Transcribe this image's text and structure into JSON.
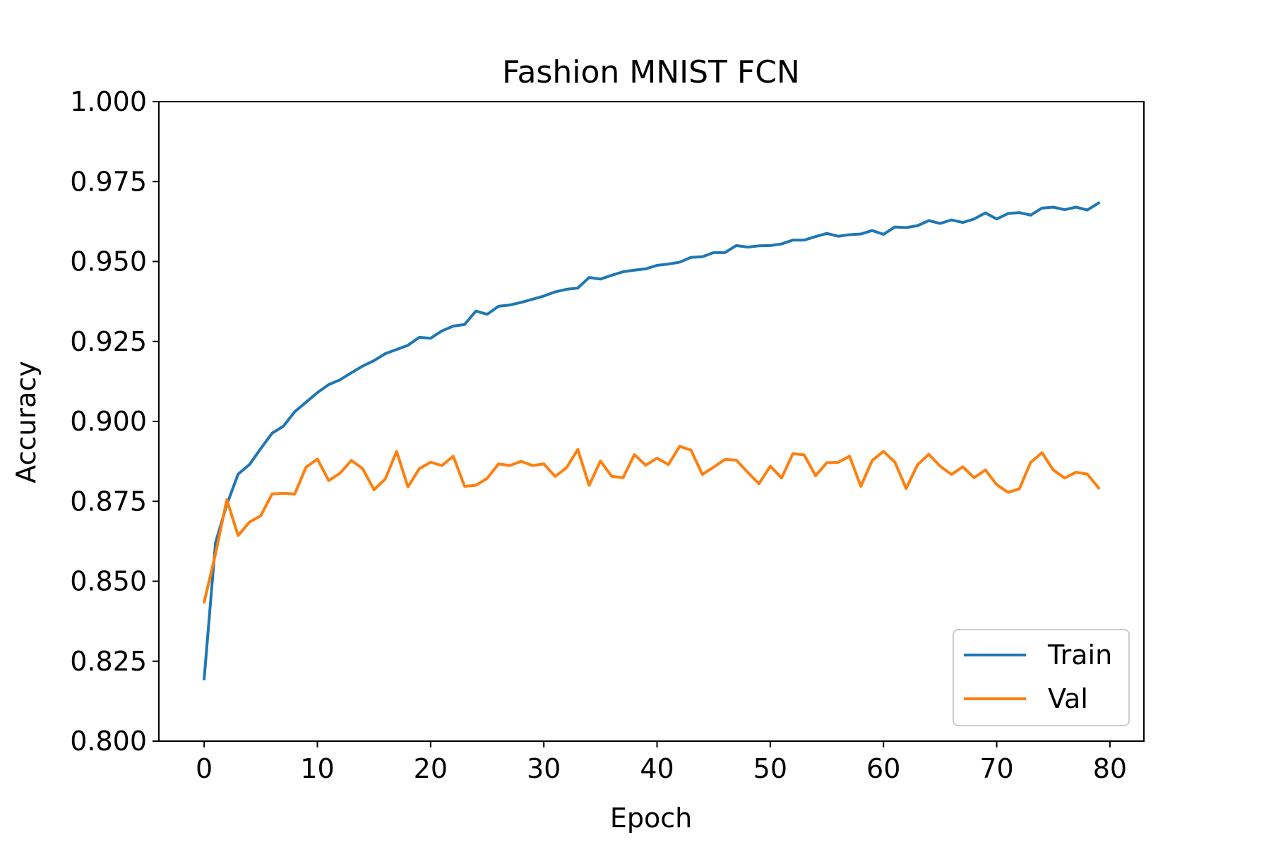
{
  "chart_data": {
    "type": "line",
    "title": "Fashion MNIST FCN",
    "xlabel": "Epoch",
    "ylabel": "Accuracy",
    "xlim": [
      -4,
      83
    ],
    "ylim": [
      0.8,
      1.0
    ],
    "xticks": [
      0,
      10,
      20,
      30,
      40,
      50,
      60,
      70,
      80
    ],
    "yticks": [
      0.8,
      0.825,
      0.85,
      0.875,
      0.9,
      0.925,
      0.95,
      0.975,
      1.0
    ],
    "xtick_labels": [
      "0",
      "10",
      "20",
      "30",
      "40",
      "50",
      "60",
      "70",
      "80"
    ],
    "ytick_labels": [
      "0.800",
      "0.825",
      "0.850",
      "0.875",
      "0.900",
      "0.925",
      "0.950",
      "0.975",
      "1.000"
    ],
    "grid": false,
    "legend": {
      "position": "lower-right",
      "entries": [
        "Train",
        "Val"
      ]
    },
    "x": [
      0,
      1,
      2,
      3,
      4,
      5,
      6,
      7,
      8,
      9,
      10,
      11,
      12,
      13,
      14,
      15,
      16,
      17,
      18,
      19,
      20,
      21,
      22,
      23,
      24,
      25,
      26,
      27,
      28,
      29,
      30,
      31,
      32,
      33,
      34,
      35,
      36,
      37,
      38,
      39,
      40,
      41,
      42,
      43,
      44,
      45,
      46,
      47,
      48,
      49,
      50,
      51,
      52,
      53,
      54,
      55,
      56,
      57,
      58,
      59,
      60,
      61,
      62,
      63,
      64,
      65,
      66,
      67,
      68,
      69,
      70,
      71,
      72,
      73,
      74,
      75,
      76,
      77,
      78,
      79
    ],
    "series": [
      {
        "name": "Train",
        "color": "#1f77b4",
        "values": [
          0.8195,
          0.862,
          0.874,
          0.8835,
          0.8865,
          0.8915,
          0.8963,
          0.8985,
          0.903,
          0.906,
          0.909,
          0.9115,
          0.913,
          0.9152,
          0.9173,
          0.919,
          0.9212,
          0.9225,
          0.9238,
          0.9263,
          0.926,
          0.9283,
          0.9298,
          0.9303,
          0.9345,
          0.9335,
          0.936,
          0.9364,
          0.9372,
          0.9382,
          0.9392,
          0.9405,
          0.9413,
          0.9417,
          0.945,
          0.9445,
          0.9457,
          0.9468,
          0.9473,
          0.9477,
          0.9488,
          0.9492,
          0.9498,
          0.9513,
          0.9515,
          0.9528,
          0.9528,
          0.955,
          0.9545,
          0.9549,
          0.955,
          0.9555,
          0.9567,
          0.9567,
          0.9578,
          0.9588,
          0.9579,
          0.9584,
          0.9586,
          0.9597,
          0.9585,
          0.9608,
          0.9606,
          0.9612,
          0.9628,
          0.9619,
          0.963,
          0.9622,
          0.9633,
          0.9652,
          0.9633,
          0.965,
          0.9653,
          0.9645,
          0.9667,
          0.967,
          0.9662,
          0.967,
          0.9661,
          0.9683
        ]
      },
      {
        "name": "Val",
        "color": "#ff7f0e",
        "values": [
          0.8435,
          0.8585,
          0.8755,
          0.8643,
          0.8685,
          0.8705,
          0.8773,
          0.8775,
          0.8773,
          0.8857,
          0.8882,
          0.8815,
          0.8838,
          0.8878,
          0.8852,
          0.8786,
          0.882,
          0.8906,
          0.8795,
          0.8852,
          0.8872,
          0.8862,
          0.8891,
          0.8797,
          0.88,
          0.8822,
          0.8867,
          0.8862,
          0.8875,
          0.8862,
          0.8867,
          0.8828,
          0.8855,
          0.8912,
          0.88,
          0.8876,
          0.8828,
          0.8824,
          0.8896,
          0.8863,
          0.8885,
          0.8865,
          0.8922,
          0.891,
          0.8834,
          0.8857,
          0.8881,
          0.8879,
          0.8841,
          0.8805,
          0.886,
          0.8823,
          0.8899,
          0.8895,
          0.883,
          0.8871,
          0.8872,
          0.8891,
          0.8797,
          0.8878,
          0.8906,
          0.8873,
          0.879,
          0.8864,
          0.8897,
          0.886,
          0.8834,
          0.8858,
          0.8824,
          0.8848,
          0.8802,
          0.8778,
          0.8789,
          0.8872,
          0.8902,
          0.8848,
          0.8823,
          0.8841,
          0.8835,
          0.8792
        ]
      }
    ]
  }
}
